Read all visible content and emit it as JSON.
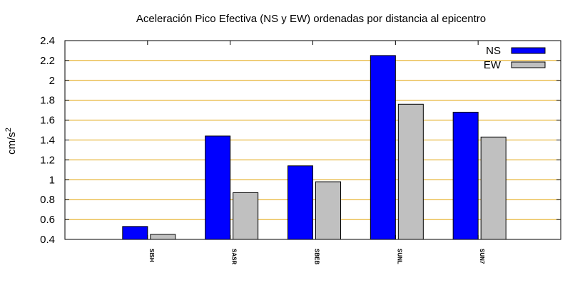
{
  "chart_data": {
    "type": "bar",
    "title": "Aceleración Pico Efectiva (NS y EW) ordenadas por distancia al epicentro",
    "ylabel_base": "cm/s",
    "ylabel_exp": "2",
    "xlabel": "",
    "categories": [
      "SISH",
      "SASR",
      "SBEB",
      "SUNL",
      "SUN7"
    ],
    "series": [
      {
        "name": "NS",
        "color": "#0000ff",
        "values": [
          0.53,
          1.44,
          1.14,
          2.25,
          1.68
        ]
      },
      {
        "name": "EW",
        "color": "#c0c0c0",
        "values": [
          0.45,
          0.87,
          0.98,
          1.76,
          1.43
        ]
      }
    ],
    "ylim": [
      0.4,
      2.4
    ],
    "yticks": [
      0.4,
      0.6,
      0.8,
      1,
      1.2,
      1.4,
      1.6,
      1.8,
      2,
      2.2,
      2.4
    ],
    "xlim": [
      -1,
      5
    ],
    "grid": true,
    "grid_color": "#e0a000",
    "legend_position": "top-right"
  }
}
